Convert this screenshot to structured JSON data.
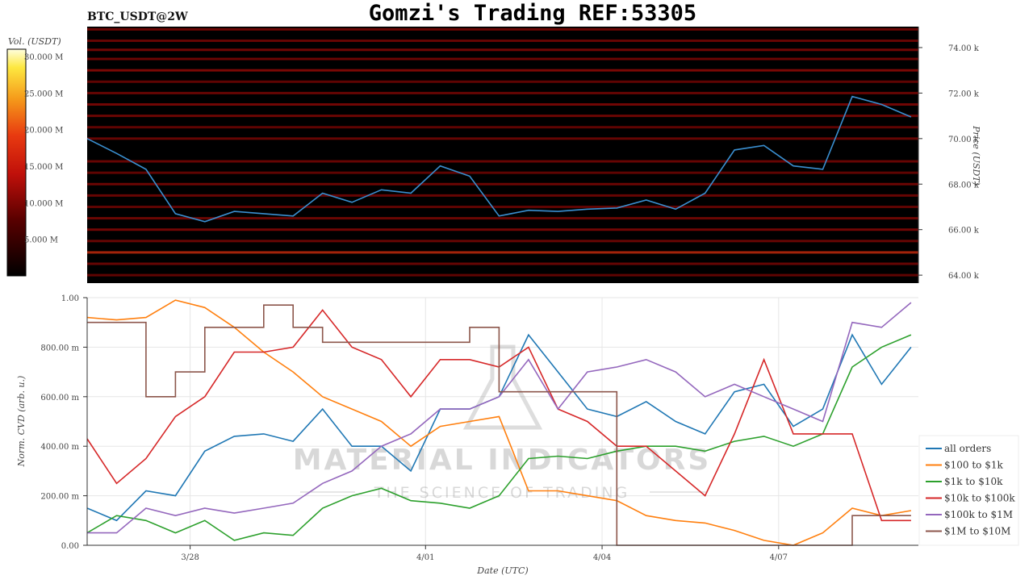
{
  "title": "Gomzi's Trading REF:53305",
  "subtitle": "BTC_USDT@2W",
  "watermark": {
    "line1": "MATERIAL INDICATORS",
    "line2": "THE SCIENCE OF TRADING"
  },
  "chart_data": [
    {
      "type": "heatmap",
      "xlabel": "",
      "ylabel": "Price (USDT)",
      "ylim": [
        63.65,
        74.92
      ],
      "yunit": "k",
      "yticks": [
        64,
        66,
        68,
        70,
        72,
        74
      ],
      "ytick_labels": [
        "64.00 k",
        "66.00 k",
        "68.00 k",
        "70.00 k",
        "72.00 k",
        "74.00 k"
      ],
      "colorbar": {
        "label": "Vol. (USDT)",
        "range": [
          0,
          31
        ],
        "ticks": [
          5,
          10,
          15,
          20,
          25,
          30
        ],
        "tick_labels": [
          "5.000 M",
          "10.000 M",
          "15.000 M",
          "20.000 M",
          "25.000 M",
          "30.000 M"
        ],
        "colors": [
          "#000000",
          "#5a0000",
          "#c0100a",
          "#e83a10",
          "#f59a1a",
          "#fde840",
          "#ffffe0"
        ]
      },
      "liquidity_levels": [
        {
          "price": 74.8,
          "vol": 6
        },
        {
          "price": 74.3,
          "vol": 5
        },
        {
          "price": 73.9,
          "vol": 7
        },
        {
          "price": 73.5,
          "vol": 6
        },
        {
          "price": 73.0,
          "vol": 9
        },
        {
          "price": 72.5,
          "vol": 4
        },
        {
          "price": 72.0,
          "vol": 5
        },
        {
          "price": 71.5,
          "vol": 7
        },
        {
          "price": 71.0,
          "vol": 6
        },
        {
          "price": 70.5,
          "vol": 4
        },
        {
          "price": 70.0,
          "vol": 5
        },
        {
          "price": 69.0,
          "vol": 5
        },
        {
          "price": 68.5,
          "vol": 4
        },
        {
          "price": 68.0,
          "vol": 6
        },
        {
          "price": 67.5,
          "vol": 5
        },
        {
          "price": 67.0,
          "vol": 4
        },
        {
          "price": 66.5,
          "vol": 6
        },
        {
          "price": 66.0,
          "vol": 7
        },
        {
          "price": 65.5,
          "vol": 5
        },
        {
          "price": 65.0,
          "vol": 16
        },
        {
          "price": 64.5,
          "vol": 5
        },
        {
          "price": 64.0,
          "vol": 4
        }
      ],
      "price_series": {
        "name": "",
        "color": "#3a8fd0",
        "values": [
          70.0,
          69.35,
          68.65,
          66.7,
          66.35,
          66.8,
          66.7,
          66.6,
          67.6,
          67.2,
          67.75,
          67.6,
          68.8,
          68.35,
          66.6,
          66.85,
          66.8,
          66.9,
          66.95,
          67.3,
          66.9,
          67.6,
          69.5,
          69.7,
          68.8,
          68.65,
          71.85,
          71.5,
          70.95
        ]
      }
    },
    {
      "type": "line",
      "xlabel": "Date (UTC)",
      "ylabel": "Norm. CVD (arb. u.)",
      "ylim": [
        0,
        1
      ],
      "yticks": [
        0,
        0.2,
        0.4,
        0.6,
        0.8,
        1.0
      ],
      "ytick_labels": [
        "0.00",
        "200.00 m",
        "400.00 m",
        "600.00 m",
        "800.00 m",
        "1.00"
      ],
      "xticks": [
        "3/28 00:00",
        "4/01 00:00",
        "4/04 00:00",
        "4/07 00:00"
      ],
      "xtick_labels": [
        "3/28",
        "4/01",
        "4/04",
        "4/07"
      ],
      "xlim": [
        "3/26 06:00",
        "4/09 09:00"
      ],
      "x": [
        "3/26 06:00",
        "3/26 18:00",
        "3/27 06:00",
        "3/27 18:00",
        "3/28 06:00",
        "3/28 18:00",
        "3/29 06:00",
        "3/29 18:00",
        "3/30 06:00",
        "3/30 18:00",
        "3/31 06:00",
        "3/31 18:00",
        "4/01 06:00",
        "4/01 18:00",
        "4/02 06:00",
        "4/02 18:00",
        "4/03 06:00",
        "4/03 18:00",
        "4/04 06:00",
        "4/04 18:00",
        "4/05 06:00",
        "4/05 18:00",
        "4/06 06:00",
        "4/06 18:00",
        "4/07 06:00",
        "4/07 18:00",
        "4/08 06:00",
        "4/08 18:00",
        "4/09 06:00"
      ],
      "grid": true,
      "legend_placement": "right",
      "series": [
        {
          "name": "all orders",
          "color": "#1f77b4",
          "values": [
            0.15,
            0.1,
            0.22,
            0.2,
            0.38,
            0.44,
            0.45,
            0.42,
            0.55,
            0.4,
            0.4,
            0.3,
            0.55,
            0.55,
            0.6,
            0.85,
            0.7,
            0.55,
            0.52,
            0.58,
            0.5,
            0.45,
            0.62,
            0.65,
            0.48,
            0.55,
            0.85,
            0.65,
            0.8
          ]
        },
        {
          "name": "$100 to $1k",
          "color": "#ff7f0e",
          "values": [
            0.92,
            0.91,
            0.92,
            0.99,
            0.96,
            0.88,
            0.78,
            0.7,
            0.6,
            0.55,
            0.5,
            0.4,
            0.48,
            0.5,
            0.52,
            0.22,
            0.22,
            0.2,
            0.18,
            0.12,
            0.1,
            0.09,
            0.06,
            0.02,
            0.0,
            0.05,
            0.15,
            0.12,
            0.14
          ]
        },
        {
          "name": "$1k to $10k",
          "color": "#2ca02c",
          "values": [
            0.05,
            0.12,
            0.1,
            0.05,
            0.1,
            0.02,
            0.05,
            0.04,
            0.15,
            0.2,
            0.23,
            0.18,
            0.17,
            0.15,
            0.2,
            0.35,
            0.36,
            0.35,
            0.38,
            0.4,
            0.4,
            0.38,
            0.42,
            0.44,
            0.4,
            0.45,
            0.72,
            0.8,
            0.85
          ]
        },
        {
          "name": "$10k to $100k",
          "color": "#d62728",
          "values": [
            0.43,
            0.25,
            0.35,
            0.52,
            0.6,
            0.78,
            0.78,
            0.8,
            0.95,
            0.8,
            0.75,
            0.6,
            0.75,
            0.75,
            0.72,
            0.8,
            0.55,
            0.5,
            0.4,
            0.4,
            0.3,
            0.2,
            0.45,
            0.75,
            0.45,
            0.45,
            0.45,
            0.1,
            0.1
          ]
        },
        {
          "name": "$100k to $1M",
          "color": "#9467bd",
          "values": [
            0.05,
            0.05,
            0.15,
            0.12,
            0.15,
            0.13,
            0.15,
            0.17,
            0.25,
            0.3,
            0.4,
            0.45,
            0.55,
            0.55,
            0.6,
            0.75,
            0.55,
            0.7,
            0.72,
            0.75,
            0.7,
            0.6,
            0.65,
            0.6,
            0.55,
            0.5,
            0.9,
            0.88,
            0.98
          ]
        },
        {
          "name": "$1M to $10M",
          "color": "#8c564b",
          "step": true,
          "values": [
            0.9,
            0.9,
            0.6,
            0.7,
            0.88,
            0.88,
            0.97,
            0.88,
            0.82,
            0.82,
            0.82,
            0.82,
            0.82,
            0.88,
            0.62,
            0.62,
            0.62,
            0.62,
            0.0,
            0.0,
            0.0,
            0.0,
            0.0,
            0.0,
            0.0,
            0.0,
            0.12,
            0.12,
            0.12
          ]
        }
      ]
    }
  ]
}
